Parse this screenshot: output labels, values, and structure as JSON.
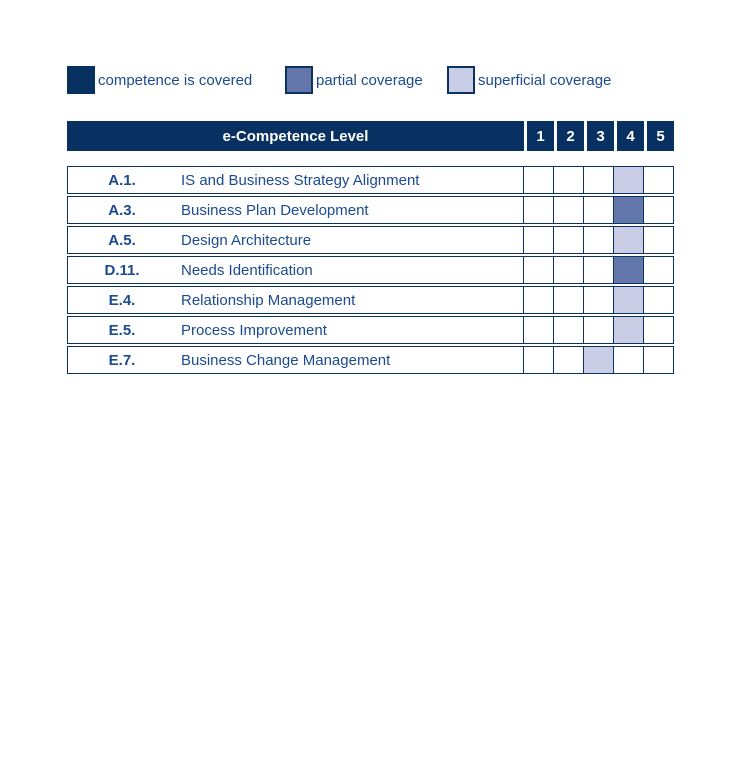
{
  "colors": {
    "covered": "#083060",
    "partial": "#6377aa",
    "superficial": "#c9cde6",
    "border": "#0c3261",
    "text": "#1b4a8f"
  },
  "legend": {
    "items": [
      {
        "type": "covered",
        "label": "competence is covered"
      },
      {
        "type": "partial",
        "label": "partial coverage"
      },
      {
        "type": "superficial",
        "label": "superficial coverage"
      }
    ]
  },
  "header": {
    "title": "e-Competence Level",
    "levels": [
      "1",
      "2",
      "3",
      "4",
      "5"
    ]
  },
  "rows": [
    {
      "code": "A.1.",
      "label": "IS and Business Strategy Alignment",
      "cells": [
        "none",
        "none",
        "none",
        "superficial",
        "none"
      ]
    },
    {
      "code": "A.3.",
      "label": "Business Plan Development",
      "cells": [
        "none",
        "none",
        "none",
        "partial",
        "none"
      ]
    },
    {
      "code": "A.5.",
      "label": "Design Architecture",
      "cells": [
        "none",
        "none",
        "none",
        "superficial",
        "none"
      ]
    },
    {
      "code": "D.11.",
      "label": "Needs Identification",
      "cells": [
        "none",
        "none",
        "none",
        "partial",
        "none"
      ]
    },
    {
      "code": "E.4.",
      "label": "Relationship Management",
      "cells": [
        "none",
        "none",
        "none",
        "superficial",
        "none"
      ]
    },
    {
      "code": "E.5.",
      "label": "Process Improvement",
      "cells": [
        "none",
        "none",
        "none",
        "superficial",
        "none"
      ]
    },
    {
      "code": "E.7.",
      "label": "Business Change Management",
      "cells": [
        "none",
        "none",
        "superficial",
        "none",
        "none"
      ]
    }
  ],
  "chart_data": {
    "type": "heatmap",
    "title": "e-Competence Level",
    "columns": [
      "1",
      "2",
      "3",
      "4",
      "5"
    ],
    "row_labels": [
      "A.1. IS and Business Strategy Alignment",
      "A.3. Business Plan Development",
      "A.5. Design Architecture",
      "D.11. Needs Identification",
      "E.4. Relationship Management",
      "E.5. Process Improvement",
      "E.7. Business Change Management"
    ],
    "cells": [
      {
        "row": "A.1.",
        "level": 4,
        "coverage": "superficial"
      },
      {
        "row": "A.3.",
        "level": 4,
        "coverage": "partial"
      },
      {
        "row": "A.5.",
        "level": 4,
        "coverage": "superficial"
      },
      {
        "row": "D.11.",
        "level": 4,
        "coverage": "partial"
      },
      {
        "row": "E.4.",
        "level": 4,
        "coverage": "superficial"
      },
      {
        "row": "E.5.",
        "level": 4,
        "coverage": "superficial"
      },
      {
        "row": "E.7.",
        "level": 3,
        "coverage": "superficial"
      }
    ],
    "legend": [
      "competence is covered",
      "partial coverage",
      "superficial coverage"
    ],
    "legend_position": "top"
  }
}
